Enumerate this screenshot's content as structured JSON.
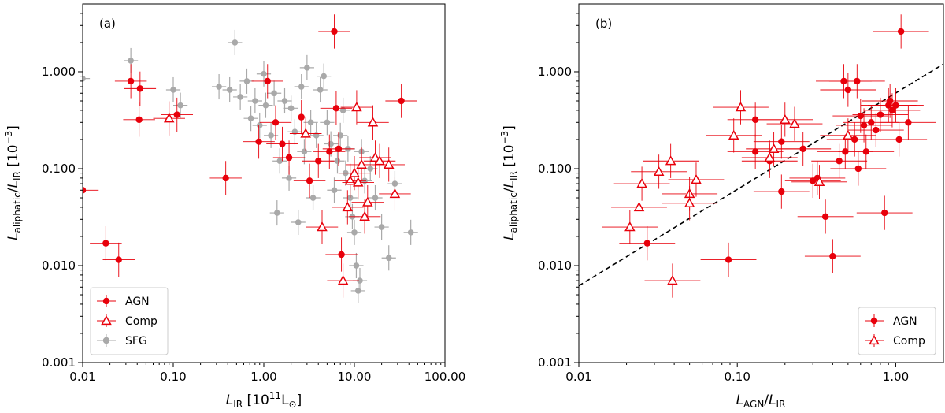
{
  "chart_data": [
    {
      "type": "scatter",
      "panel_label": "(a)",
      "xscale": "log",
      "yscale": "log",
      "xlim": [
        0.01,
        100
      ],
      "ylim": [
        0.001,
        5
      ],
      "xticks": [
        "0.01",
        "0.10",
        "1.00",
        "10.00",
        "100.00"
      ],
      "yticks": [
        "0.001",
        "0.010",
        "0.100",
        "1.000"
      ],
      "xlabel": "L_IR [10^11 L_sun]",
      "ylabel": "L_aliphatic/L_IR [10^-3]",
      "legend": [
        "AGN",
        "Comp",
        "SFG"
      ],
      "legend_position": "lower-left",
      "series": [
        {
          "name": "AGN",
          "marker": "filled-circle",
          "color": "#e8000b",
          "points": [
            [
              0.01,
              0.06
            ],
            [
              0.018,
              0.017
            ],
            [
              0.025,
              0.0115
            ],
            [
              0.034,
              0.8
            ],
            [
              0.042,
              0.32
            ],
            [
              0.043,
              0.67
            ],
            [
              0.11,
              0.36
            ],
            [
              0.38,
              0.08
            ],
            [
              0.88,
              0.19
            ],
            [
              1.1,
              0.8
            ],
            [
              1.35,
              0.3
            ],
            [
              1.6,
              0.18
            ],
            [
              1.9,
              0.13
            ],
            [
              2.6,
              0.34
            ],
            [
              3.2,
              0.075
            ],
            [
              4.0,
              0.12
            ],
            [
              5.3,
              0.15
            ],
            [
              6.0,
              2.6
            ],
            [
              6.3,
              0.42
            ],
            [
              6.7,
              0.16
            ],
            [
              7.2,
              0.013
            ],
            [
              33.0,
              0.5
            ]
          ],
          "xerr_frac": 0.5,
          "yerr_frac": 0.5
        },
        {
          "name": "Comp",
          "marker": "open-triangle",
          "color": "#e8000b",
          "points": [
            [
              0.09,
              0.33
            ],
            [
              2.9,
              0.23
            ],
            [
              4.4,
              0.025
            ],
            [
              7.5,
              0.007
            ],
            [
              8.4,
              0.04
            ],
            [
              9.0,
              0.075
            ],
            [
              10.0,
              0.09
            ],
            [
              10.6,
              0.43
            ],
            [
              11.0,
              0.072
            ],
            [
              12.0,
              0.11
            ],
            [
              13.0,
              0.032
            ],
            [
              14.0,
              0.045
            ],
            [
              16.0,
              0.3
            ],
            [
              17.0,
              0.13
            ],
            [
              19.0,
              0.12
            ],
            [
              24.0,
              0.11
            ],
            [
              28.0,
              0.055
            ]
          ],
          "xerr_frac": 0.5,
          "yerr_frac": 0.5
        },
        {
          "name": "SFG",
          "marker": "filled-circle",
          "color": "#a9a9a9",
          "points": [
            [
              0.01,
              0.85
            ],
            [
              0.034,
              1.3
            ],
            [
              0.1,
              0.65
            ],
            [
              0.12,
              0.45
            ],
            [
              0.32,
              0.7
            ],
            [
              0.42,
              0.65
            ],
            [
              0.48,
              2.0
            ],
            [
              0.55,
              0.55
            ],
            [
              0.65,
              0.8
            ],
            [
              0.72,
              0.33
            ],
            [
              0.8,
              0.5
            ],
            [
              0.9,
              0.28
            ],
            [
              1.0,
              0.95
            ],
            [
              1.05,
              0.45
            ],
            [
              1.2,
              0.22
            ],
            [
              1.3,
              0.6
            ],
            [
              1.4,
              0.035
            ],
            [
              1.5,
              0.12
            ],
            [
              1.7,
              0.5
            ],
            [
              1.9,
              0.08
            ],
            [
              2.0,
              0.42
            ],
            [
              2.2,
              0.24
            ],
            [
              2.4,
              0.028
            ],
            [
              2.6,
              0.7
            ],
            [
              2.8,
              0.15
            ],
            [
              3.0,
              1.1
            ],
            [
              3.3,
              0.3
            ],
            [
              3.5,
              0.05
            ],
            [
              3.8,
              0.22
            ],
            [
              4.2,
              0.65
            ],
            [
              4.6,
              0.9
            ],
            [
              5.0,
              0.3
            ],
            [
              5.5,
              0.18
            ],
            [
              6.0,
              0.06
            ],
            [
              6.5,
              0.12
            ],
            [
              7.0,
              0.22
            ],
            [
              7.5,
              0.4
            ],
            [
              8.0,
              0.09
            ],
            [
              8.5,
              0.16
            ],
            [
              9.0,
              0.05
            ],
            [
              9.5,
              0.032
            ],
            [
              10.0,
              0.022
            ],
            [
              10.5,
              0.01
            ],
            [
              11.0,
              0.0055
            ],
            [
              11.5,
              0.007
            ],
            [
              12.0,
              0.15
            ],
            [
              13.0,
              0.075
            ],
            [
              15.0,
              0.1
            ],
            [
              17.0,
              0.05
            ],
            [
              20.0,
              0.025
            ],
            [
              24.0,
              0.012
            ],
            [
              28.0,
              0.07
            ],
            [
              42.0,
              0.022
            ]
          ],
          "xerr_frac": 0.2,
          "yerr_frac": 0.35
        }
      ]
    },
    {
      "type": "scatter",
      "panel_label": "(b)",
      "xscale": "log",
      "yscale": "log",
      "xlim": [
        0.01,
        2
      ],
      "ylim": [
        0.001,
        5
      ],
      "xticks": [
        "0.01",
        "0.10",
        "1.00"
      ],
      "yticks": [
        "0.001",
        "0.010",
        "0.100",
        "1.000"
      ],
      "xlabel": "L_AGN/L_IR",
      "ylabel": "L_aliphatic/L_IR [10^-3]",
      "legend": [
        "AGN",
        "Comp"
      ],
      "legend_position": "lower-right",
      "reference_line": {
        "style": "dashed",
        "color": "#000000",
        "x": [
          0.01,
          2.0
        ],
        "y": [
          0.0062,
          1.2
        ]
      },
      "series": [
        {
          "name": "AGN",
          "marker": "filled-circle",
          "color": "#e8000b",
          "points": [
            [
              0.027,
              0.017
            ],
            [
              0.088,
              0.0115
            ],
            [
              0.13,
              0.32
            ],
            [
              0.13,
              0.15
            ],
            [
              0.16,
              0.12
            ],
            [
              0.19,
              0.058
            ],
            [
              0.19,
              0.19
            ],
            [
              0.26,
              0.16
            ],
            [
              0.3,
              0.075
            ],
            [
              0.32,
              0.08
            ],
            [
              0.36,
              0.032
            ],
            [
              0.4,
              0.0125
            ],
            [
              0.44,
              0.12
            ],
            [
              0.47,
              0.8
            ],
            [
              0.48,
              0.15
            ],
            [
              0.5,
              0.65
            ],
            [
              0.55,
              0.2
            ],
            [
              0.57,
              0.8
            ],
            [
              0.58,
              0.1
            ],
            [
              0.6,
              0.35
            ],
            [
              0.63,
              0.28
            ],
            [
              0.65,
              0.15
            ],
            [
              0.7,
              0.3
            ],
            [
              0.75,
              0.25
            ],
            [
              0.8,
              0.36
            ],
            [
              0.85,
              0.035
            ],
            [
              0.9,
              0.45
            ],
            [
              0.92,
              0.5
            ],
            [
              0.95,
              0.4
            ],
            [
              1.0,
              0.45
            ],
            [
              1.05,
              0.2
            ],
            [
              1.08,
              2.6
            ],
            [
              1.2,
              0.3
            ]
          ],
          "xerr_frac": 0.5,
          "yerr_frac": 0.5
        },
        {
          "name": "Comp",
          "marker": "open-triangle",
          "color": "#e8000b",
          "points": [
            [
              0.021,
              0.025
            ],
            [
              0.024,
              0.04
            ],
            [
              0.025,
              0.07
            ],
            [
              0.032,
              0.093
            ],
            [
              0.038,
              0.12
            ],
            [
              0.039,
              0.007
            ],
            [
              0.05,
              0.055
            ],
            [
              0.05,
              0.044
            ],
            [
              0.055,
              0.077
            ],
            [
              0.095,
              0.22
            ],
            [
              0.105,
              0.43
            ],
            [
              0.16,
              0.13
            ],
            [
              0.17,
              0.16
            ],
            [
              0.2,
              0.32
            ],
            [
              0.23,
              0.29
            ],
            [
              0.33,
              0.073
            ],
            [
              0.5,
              0.22
            ]
          ],
          "xerr_frac": 0.5,
          "yerr_frac": 0.5
        }
      ]
    }
  ]
}
